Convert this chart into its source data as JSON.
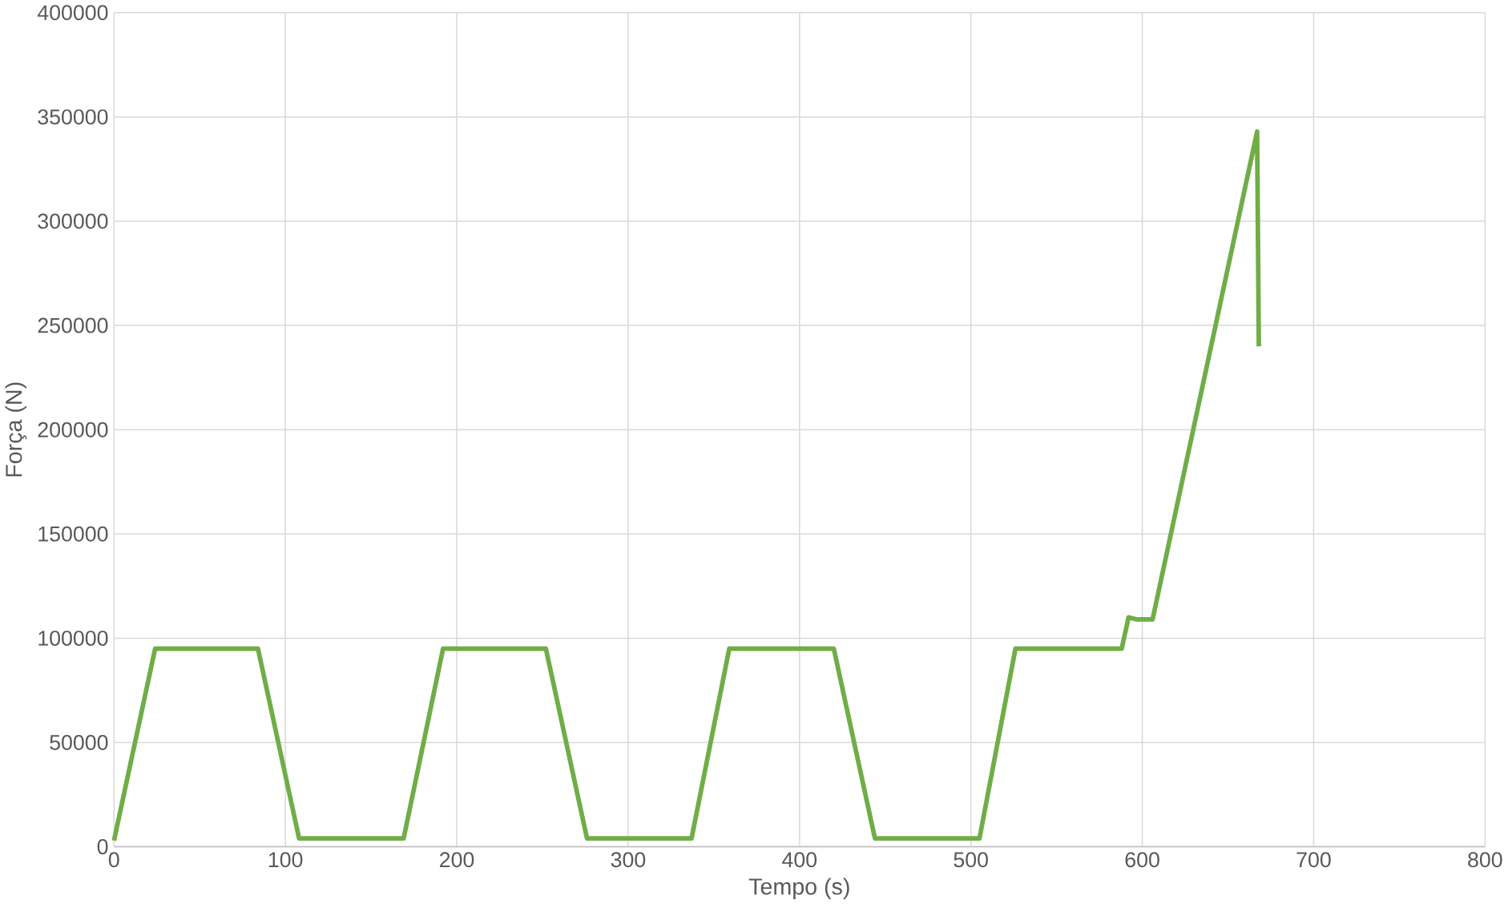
{
  "chart_data": {
    "type": "line",
    "xlabel": "Tempo (s)",
    "ylabel": "Força (N)",
    "xlim": [
      0,
      800
    ],
    "xticks": [
      0,
      100,
      200,
      300,
      400,
      500,
      600,
      700,
      800
    ],
    "ylim": [
      0,
      400000
    ],
    "yticks": [
      0,
      50000,
      100000,
      150000,
      200000,
      250000,
      300000,
      350000,
      400000
    ],
    "grid": true,
    "marker": "none",
    "line_style": "solid",
    "series": [
      {
        "color": "#70ad47",
        "x": [
          0,
          24,
          84,
          108,
          169,
          192,
          252,
          276,
          337,
          359,
          420,
          444,
          505,
          526,
          588,
          592,
          597,
          606,
          667,
          668
        ],
        "values": [
          3000,
          95000,
          95000,
          4000,
          4000,
          95000,
          95000,
          4000,
          4000,
          95000,
          95000,
          4000,
          4000,
          95000,
          95000,
          110000,
          109000,
          109000,
          343000,
          240000
        ]
      }
    ]
  }
}
